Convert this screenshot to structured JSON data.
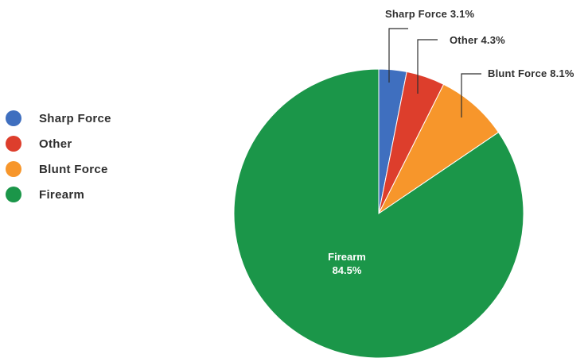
{
  "chart_data": {
    "type": "pie",
    "categories": [
      "Sharp Force",
      "Other",
      "Blunt Force",
      "Firearm"
    ],
    "values": [
      3.1,
      4.3,
      8.1,
      84.5
    ],
    "unit": "%",
    "colors": [
      "#3f6fbf",
      "#dd3e2c",
      "#f7962b",
      "#1b9649"
    ],
    "labels": {
      "sharp_force": "Sharp Force 3.1%",
      "other": "Other 4.3%",
      "blunt_force": "Blunt Force 8.1%",
      "firearm_name": "Firearm",
      "firearm_value": "84.5%"
    },
    "legend": {
      "position": "left",
      "items": [
        {
          "label": "Sharp Force",
          "color": "#3f6fbf"
        },
        {
          "label": "Other",
          "color": "#dd3e2c"
        },
        {
          "label": "Blunt Force",
          "color": "#f7962b"
        },
        {
          "label": "Firearm",
          "color": "#1b9649"
        }
      ]
    }
  }
}
